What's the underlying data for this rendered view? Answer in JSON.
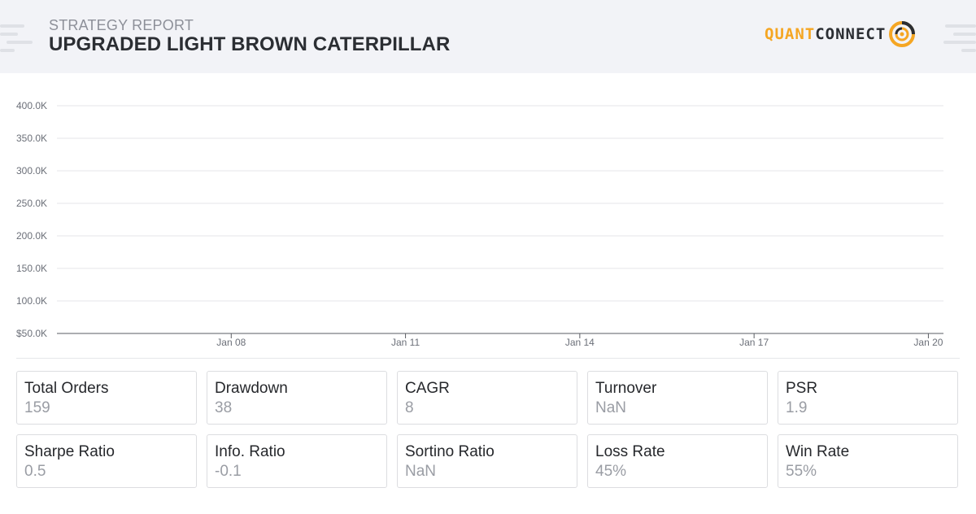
{
  "header": {
    "report_label": "STRATEGY REPORT",
    "title": "UPGRADED LIGHT BROWN CATERPILLAR",
    "logo_part1": "QUANT",
    "logo_part2": "CONNECT"
  },
  "colors": {
    "brand_orange": "#f5a623",
    "header_bg": "#f2f3f7",
    "text_dark": "#2b2e33",
    "text_muted": "#9a9da4"
  },
  "chart_data": {
    "type": "line",
    "title": "",
    "xlabel": "",
    "ylabel": "",
    "y_tick_labels": [
      "$50.0K",
      "100.0K",
      "150.0K",
      "200.0K",
      "250.0K",
      "300.0K",
      "350.0K",
      "400.0K"
    ],
    "y_ticks": [
      50000,
      100000,
      150000,
      200000,
      250000,
      300000,
      350000,
      400000
    ],
    "ylim": [
      50000,
      400000
    ],
    "x_tick_labels": [
      "Jan 08",
      "Jan 11",
      "Jan 14",
      "Jan 17",
      "Jan 20"
    ],
    "x_ticks": [
      "Jan 08",
      "Jan 11",
      "Jan 14",
      "Jan 17",
      "Jan 20"
    ],
    "xlim": [
      "Jan 05",
      "Jan 20"
    ],
    "grid": true,
    "series": []
  },
  "stats": [
    {
      "label": "Total Orders",
      "value": "159"
    },
    {
      "label": "Drawdown",
      "value": "38"
    },
    {
      "label": "CAGR",
      "value": "8"
    },
    {
      "label": "Turnover",
      "value": "NaN"
    },
    {
      "label": "PSR",
      "value": "1.9"
    },
    {
      "label": "Sharpe Ratio",
      "value": "0.5"
    },
    {
      "label": "Info. Ratio",
      "value": "-0.1"
    },
    {
      "label": "Sortino Ratio",
      "value": "NaN"
    },
    {
      "label": "Loss Rate",
      "value": "45%"
    },
    {
      "label": "Win Rate",
      "value": "55%"
    }
  ]
}
